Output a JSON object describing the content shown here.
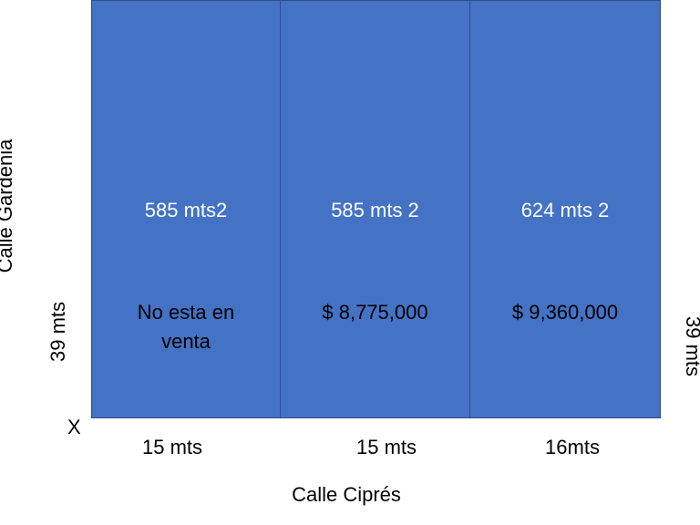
{
  "street_left": "Calle Gardenia",
  "street_bottom": "Calle Ciprés",
  "depth_left": "39 mts",
  "depth_right": "39 mts",
  "corner_mark": "X",
  "lots": [
    {
      "area": "585 mts2",
      "price": [
        "No esta en",
        "venta"
      ],
      "frontage": "15 mts"
    },
    {
      "area": "585 mts 2",
      "price": [
        "$ 8,775,000"
      ],
      "frontage": "15 mts"
    },
    {
      "area": "624 mts 2",
      "price": [
        "$ 9,360,000"
      ],
      "frontage": "16mts"
    }
  ]
}
